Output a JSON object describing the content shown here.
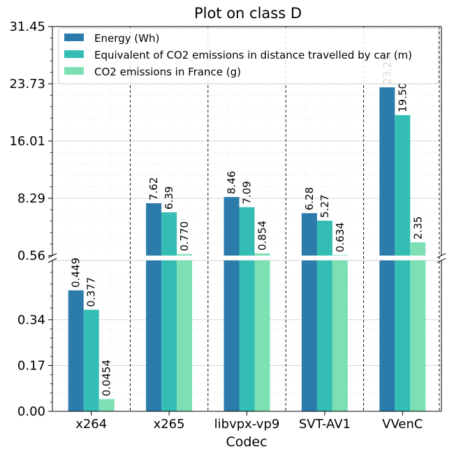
{
  "chart_data": {
    "type": "bar",
    "title": "Plot on class D",
    "xlabel": "Codec",
    "ylabel": "",
    "categories": [
      "x264",
      "x265",
      "libvpx-vp9",
      "SVT-AV1",
      "VVenC"
    ],
    "series": [
      {
        "name": "Energy (Wh)",
        "color": "#2b7bab",
        "values": [
          0.449,
          7.62,
          8.46,
          6.28,
          23.25
        ],
        "labels": [
          "0.449",
          "7.62",
          "8.46",
          "6.28",
          "23.25"
        ]
      },
      {
        "name": "Equivalent of CO2 emissions in distance travelled by car (m)",
        "color": "#33bdb5",
        "values": [
          0.377,
          6.39,
          7.09,
          5.27,
          19.5
        ],
        "labels": [
          "0.377",
          "6.39",
          "7.09",
          "5.27",
          "19.50"
        ]
      },
      {
        "name": "CO2 emissions in France (g)",
        "color": "#7de0b5",
        "values": [
          0.0454,
          0.77,
          0.854,
          0.634,
          2.35
        ],
        "labels": [
          "0.0454",
          "0.770",
          "0.854",
          "0.634",
          "2.35"
        ]
      }
    ],
    "axis_break": true,
    "lower_ylim": [
      0,
      0.56
    ],
    "upper_ylim": [
      0.56,
      31.45
    ],
    "lower_ticks": [
      "0.00",
      "0.17",
      "0.34",
      "0.56"
    ],
    "upper_ticks": [
      "8.29",
      "16.01",
      "23.73",
      "31.45"
    ],
    "grid": true,
    "legend_position": "top-left"
  }
}
